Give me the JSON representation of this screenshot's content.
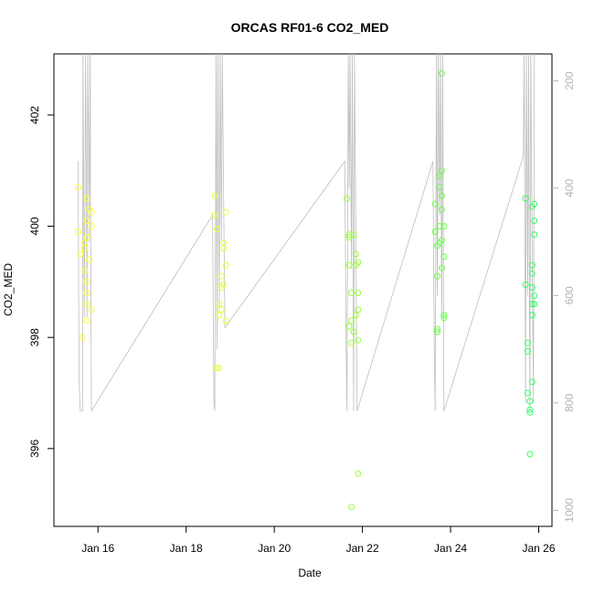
{
  "chart_data": {
    "type": "scatter",
    "title": "ORCAS RF01-6 CO2_MED",
    "xlabel": "Date",
    "ylabel": "CO2_MED",
    "x_ticks": [
      "Jan 16",
      "Jan 18",
      "Jan 20",
      "Jan 22",
      "Jan 24",
      "Jan 26"
    ],
    "x_tick_days": [
      16,
      18,
      20,
      22,
      24,
      26
    ],
    "xlim_days": [
      15.0,
      26.3
    ],
    "y_ticks": [
      "396",
      "398",
      "400",
      "402"
    ],
    "y_tick_values": [
      396,
      398,
      400,
      402
    ],
    "ylim": [
      394.6,
      403.1
    ],
    "right_axis": {
      "ticks": [
        "200",
        "400",
        "600",
        "800",
        "1000"
      ],
      "tick_values": [
        200,
        400,
        600,
        800,
        1000
      ],
      "ylim": [
        1030,
        150
      ],
      "color": "#b3b3b3"
    },
    "grid": false,
    "legend": "none",
    "point_colors": [
      "#ffff33",
      "#e6ff33",
      "#bfff33",
      "#99ff33",
      "#66ff44",
      "#33ff66"
    ],
    "line_color": "#bdbdbd",
    "series": [
      {
        "points": [
          [
            15.55,
            400.7
          ],
          [
            15.55,
            399.9
          ],
          [
            15.6,
            399.5
          ],
          [
            15.65,
            398.0
          ],
          [
            15.7,
            399.6
          ],
          [
            15.7,
            399.2
          ],
          [
            15.75,
            400.5
          ],
          [
            15.75,
            400.1
          ],
          [
            15.75,
            399.8
          ],
          [
            15.75,
            399.0
          ],
          [
            15.75,
            398.8
          ],
          [
            15.75,
            398.6
          ],
          [
            15.75,
            398.3
          ],
          [
            15.8,
            400.3
          ],
          [
            15.8,
            399.4
          ],
          [
            15.85,
            400.0
          ],
          [
            15.85,
            398.5
          ],
          [
            15.85,
            400.25
          ],
          [
            15.7,
            399.7
          ]
        ]
      },
      {
        "points": [
          [
            18.65,
            400.55
          ],
          [
            18.65,
            400.2
          ],
          [
            18.7,
            399.95
          ],
          [
            18.7,
            397.45
          ],
          [
            18.75,
            397.45
          ],
          [
            18.75,
            398.6
          ],
          [
            18.75,
            398.4
          ],
          [
            18.8,
            399.1
          ],
          [
            18.8,
            398.9
          ],
          [
            18.8,
            398.5
          ],
          [
            18.85,
            399.6
          ],
          [
            18.85,
            399.7
          ],
          [
            18.9,
            398.3
          ],
          [
            18.9,
            399.3
          ],
          [
            18.9,
            400.25
          ],
          [
            18.85,
            398.95
          ]
        ]
      },
      {
        "points": [
          [
            21.65,
            400.5
          ],
          [
            21.7,
            399.8
          ],
          [
            21.7,
            399.85
          ],
          [
            21.7,
            399.3
          ],
          [
            21.7,
            398.2
          ],
          [
            21.75,
            398.3
          ],
          [
            21.75,
            398.8
          ],
          [
            21.75,
            397.9
          ],
          [
            21.75,
            394.95
          ],
          [
            21.8,
            398.1
          ],
          [
            21.8,
            399.85
          ],
          [
            21.85,
            398.4
          ],
          [
            21.85,
            399.3
          ],
          [
            21.85,
            399.5
          ],
          [
            21.9,
            398.5
          ],
          [
            21.9,
            397.95
          ],
          [
            21.9,
            398.8
          ],
          [
            21.9,
            395.55
          ],
          [
            21.9,
            399.35
          ]
        ]
      },
      {
        "points": [
          [
            23.65,
            400.4
          ],
          [
            23.65,
            399.9
          ],
          [
            23.7,
            398.1
          ],
          [
            23.7,
            398.15
          ],
          [
            23.7,
            399.1
          ],
          [
            23.7,
            399.65
          ],
          [
            23.75,
            400.7
          ],
          [
            23.75,
            400.9
          ],
          [
            23.75,
            400.0
          ],
          [
            23.75,
            399.7
          ],
          [
            23.8,
            399.75
          ],
          [
            23.8,
            400.55
          ],
          [
            23.8,
            400.3
          ],
          [
            23.8,
            401.0
          ],
          [
            23.8,
            402.75
          ],
          [
            23.85,
            398.4
          ],
          [
            23.85,
            398.35
          ],
          [
            23.85,
            399.45
          ],
          [
            23.85,
            400.0
          ],
          [
            23.8,
            399.25
          ]
        ]
      },
      {
        "points": [
          [
            25.7,
            400.5
          ],
          [
            25.7,
            398.95
          ],
          [
            25.75,
            397.9
          ],
          [
            25.75,
            397.75
          ],
          [
            25.75,
            397.0
          ],
          [
            25.8,
            396.85
          ],
          [
            25.8,
            395.9
          ],
          [
            25.8,
            396.65
          ],
          [
            25.8,
            396.7
          ],
          [
            25.85,
            399.3
          ],
          [
            25.85,
            399.15
          ],
          [
            25.85,
            398.9
          ],
          [
            25.85,
            398.6
          ],
          [
            25.85,
            398.4
          ],
          [
            25.85,
            397.2
          ],
          [
            25.9,
            400.4
          ],
          [
            25.9,
            400.1
          ],
          [
            25.9,
            399.85
          ],
          [
            25.9,
            398.75
          ],
          [
            25.9,
            398.6
          ],
          [
            25.85,
            400.35
          ]
        ]
      }
    ],
    "altitude_line": [
      [
        15.55,
        350
      ],
      [
        15.57,
        760
      ],
      [
        15.6,
        815
      ],
      [
        15.65,
        815
      ],
      [
        15.66,
        150
      ],
      [
        15.69,
        640
      ],
      [
        15.72,
        150
      ],
      [
        15.75,
        640
      ],
      [
        15.77,
        150
      ],
      [
        15.8,
        500
      ],
      [
        15.82,
        150
      ],
      [
        15.85,
        815
      ],
      [
        18.6,
        450
      ],
      [
        18.63,
        800
      ],
      [
        18.65,
        815
      ],
      [
        18.68,
        150
      ],
      [
        18.7,
        700
      ],
      [
        18.72,
        150
      ],
      [
        18.75,
        620
      ],
      [
        18.77,
        150
      ],
      [
        18.8,
        500
      ],
      [
        18.82,
        150
      ],
      [
        18.88,
        660
      ],
      [
        21.6,
        350
      ],
      [
        21.63,
        700
      ],
      [
        21.65,
        815
      ],
      [
        21.68,
        150
      ],
      [
        21.7,
        400
      ],
      [
        21.72,
        150
      ],
      [
        21.75,
        550
      ],
      [
        21.77,
        150
      ],
      [
        21.8,
        815
      ],
      [
        21.82,
        150
      ],
      [
        21.88,
        815
      ],
      [
        23.6,
        350
      ],
      [
        23.63,
        700
      ],
      [
        23.65,
        815
      ],
      [
        23.68,
        150
      ],
      [
        23.7,
        600
      ],
      [
        23.72,
        150
      ],
      [
        23.75,
        450
      ],
      [
        23.77,
        150
      ],
      [
        23.8,
        640
      ],
      [
        23.82,
        150
      ],
      [
        23.85,
        815
      ],
      [
        25.65,
        340
      ],
      [
        25.67,
        150
      ],
      [
        25.7,
        800
      ],
      [
        25.72,
        150
      ],
      [
        25.75,
        600
      ],
      [
        25.77,
        150
      ],
      [
        25.8,
        815
      ],
      [
        25.82,
        150
      ],
      [
        25.88,
        800
      ],
      [
        25.9,
        150
      ]
    ]
  }
}
